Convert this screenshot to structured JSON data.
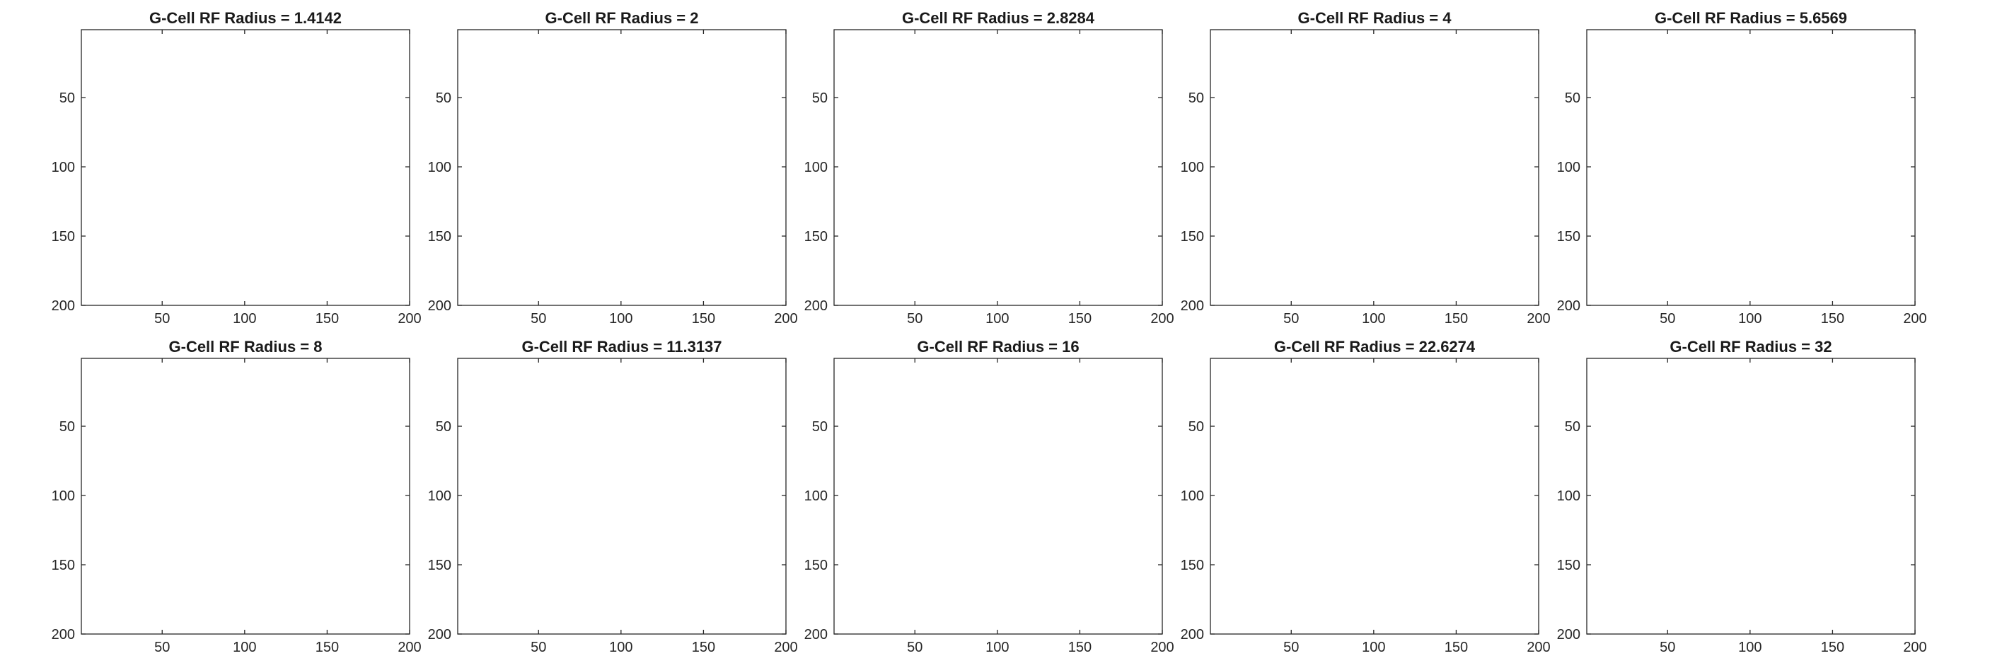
{
  "chart_data": [
    {
      "type": "heatmap",
      "title": "G-Cell RF Radius = 1.4142",
      "xticks": [
        50,
        100,
        150,
        200
      ],
      "yticks": [
        50,
        100,
        150,
        200
      ],
      "xlim": [
        1,
        200
      ],
      "ylim": [
        1,
        200
      ],
      "y_direction": "reversed",
      "xlabel": "",
      "ylabel": ""
    },
    {
      "type": "heatmap",
      "title": "G-Cell RF Radius = 2",
      "xticks": [
        50,
        100,
        150,
        200
      ],
      "yticks": [
        50,
        100,
        150,
        200
      ],
      "xlim": [
        1,
        200
      ],
      "ylim": [
        1,
        200
      ],
      "y_direction": "reversed",
      "xlabel": "",
      "ylabel": ""
    },
    {
      "type": "heatmap",
      "title": "G-Cell RF Radius = 2.8284",
      "xticks": [
        50,
        100,
        150,
        200
      ],
      "yticks": [
        50,
        100,
        150,
        200
      ],
      "xlim": [
        1,
        200
      ],
      "ylim": [
        1,
        200
      ],
      "y_direction": "reversed",
      "xlabel": "",
      "ylabel": ""
    },
    {
      "type": "heatmap",
      "title": "G-Cell RF Radius = 4",
      "xticks": [
        50,
        100,
        150,
        200
      ],
      "yticks": [
        50,
        100,
        150,
        200
      ],
      "xlim": [
        1,
        200
      ],
      "ylim": [
        1,
        200
      ],
      "y_direction": "reversed",
      "xlabel": "",
      "ylabel": ""
    },
    {
      "type": "heatmap",
      "title": "G-Cell RF Radius = 5.6569",
      "xticks": [
        50,
        100,
        150,
        200
      ],
      "yticks": [
        50,
        100,
        150,
        200
      ],
      "xlim": [
        1,
        200
      ],
      "ylim": [
        1,
        200
      ],
      "y_direction": "reversed",
      "xlabel": "",
      "ylabel": ""
    },
    {
      "type": "heatmap",
      "title": "G-Cell RF Radius = 8",
      "xticks": [
        50,
        100,
        150,
        200
      ],
      "yticks": [
        50,
        100,
        150,
        200
      ],
      "xlim": [
        1,
        200
      ],
      "ylim": [
        1,
        200
      ],
      "y_direction": "reversed",
      "xlabel": "",
      "ylabel": ""
    },
    {
      "type": "heatmap",
      "title": "G-Cell RF Radius = 11.3137",
      "xticks": [
        50,
        100,
        150,
        200
      ],
      "yticks": [
        50,
        100,
        150,
        200
      ],
      "xlim": [
        1,
        200
      ],
      "ylim": [
        1,
        200
      ],
      "y_direction": "reversed",
      "xlabel": "",
      "ylabel": ""
    },
    {
      "type": "heatmap",
      "title": "G-Cell RF Radius = 16",
      "xticks": [
        50,
        100,
        150,
        200
      ],
      "yticks": [
        50,
        100,
        150,
        200
      ],
      "xlim": [
        1,
        200
      ],
      "ylim": [
        1,
        200
      ],
      "y_direction": "reversed",
      "xlabel": "",
      "ylabel": ""
    },
    {
      "type": "heatmap",
      "title": "G-Cell RF Radius = 22.6274",
      "xticks": [
        50,
        100,
        150,
        200
      ],
      "yticks": [
        50,
        100,
        150,
        200
      ],
      "xlim": [
        1,
        200
      ],
      "ylim": [
        1,
        200
      ],
      "y_direction": "reversed",
      "xlabel": "",
      "ylabel": ""
    },
    {
      "type": "heatmap",
      "title": "G-Cell RF Radius = 32",
      "xticks": [
        50,
        100,
        150,
        200
      ],
      "yticks": [
        50,
        100,
        150,
        200
      ],
      "xlim": [
        1,
        200
      ],
      "ylim": [
        1,
        200
      ],
      "y_direction": "reversed",
      "xlabel": "",
      "ylabel": ""
    }
  ],
  "colors": {
    "red": "#f0142a",
    "magenta": "#f01e6e",
    "orange": "#f06a10",
    "blue": "#1488f0",
    "cyan": "#14dce6",
    "green": "#14e68c",
    "frame": "#262626"
  }
}
